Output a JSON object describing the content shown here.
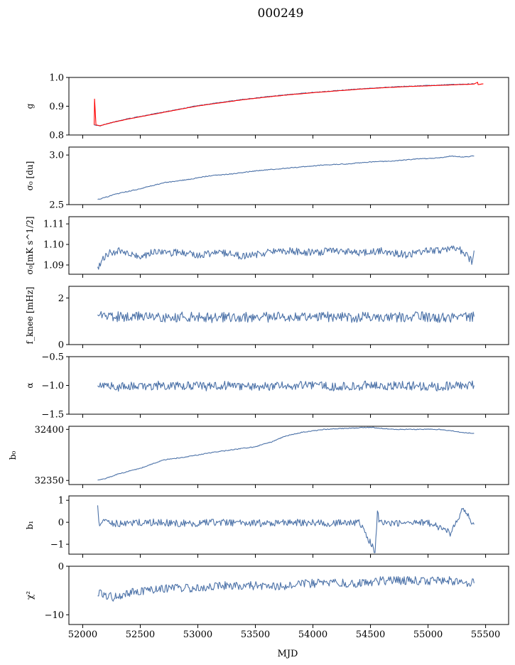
{
  "title": "000249",
  "xlabel": "MJD",
  "colors": {
    "series": "#4c72a8",
    "model": "#ff0000"
  },
  "chart_data": [
    {
      "type": "line",
      "ylabel": "g",
      "ylim": [
        0.8,
        1.0
      ],
      "yticks": [
        0.8,
        0.9,
        1.0
      ],
      "ytick_labels": [
        "0.8",
        "0.9",
        "1.0"
      ],
      "xlim": [
        51880,
        55700
      ],
      "series": [
        {
          "x": [
            52100,
            52150,
            52250,
            52400,
            52600,
            52800,
            53000,
            53200,
            53400,
            53600,
            53800,
            54000,
            54200,
            54400,
            54600,
            54800,
            55000,
            55200,
            55400
          ],
          "values": [
            0.835,
            0.832,
            0.843,
            0.857,
            0.872,
            0.887,
            0.902,
            0.913,
            0.924,
            0.933,
            0.941,
            0.948,
            0.954,
            0.96,
            0.965,
            0.969,
            0.972,
            0.975,
            0.978
          ],
          "color": "blue"
        },
        {
          "x": [
            52100,
            52103,
            52108,
            52115,
            52150,
            52250,
            52400,
            52600,
            52800,
            53000,
            53200,
            53400,
            53600,
            53800,
            54000,
            54200,
            54400,
            54600,
            54800,
            55000,
            55200,
            55400,
            55430,
            55435,
            55480
          ],
          "values": [
            0.835,
            0.925,
            0.89,
            0.835,
            0.832,
            0.843,
            0.856,
            0.871,
            0.886,
            0.901,
            0.912,
            0.923,
            0.932,
            0.94,
            0.947,
            0.953,
            0.959,
            0.964,
            0.968,
            0.971,
            0.974,
            0.977,
            0.983,
            0.975,
            0.978
          ],
          "color": "red"
        }
      ]
    },
    {
      "type": "line",
      "ylabel": "σ₀ [du]",
      "ylim": [
        2.5,
        3.08
      ],
      "yticks": [
        2.5,
        3.0
      ],
      "ytick_labels": [
        "2.5",
        "3.0"
      ],
      "xlim": [
        51880,
        55700
      ],
      "series": [
        {
          "x": [
            52130,
            52300,
            52500,
            52700,
            52900,
            53100,
            53300,
            53500,
            53700,
            53900,
            54100,
            54300,
            54500,
            54700,
            54900,
            55100,
            55200,
            55300,
            55400
          ],
          "values": [
            2.55,
            2.61,
            2.66,
            2.72,
            2.75,
            2.79,
            2.81,
            2.84,
            2.86,
            2.88,
            2.9,
            2.91,
            2.93,
            2.94,
            2.96,
            2.97,
            2.99,
            2.98,
            2.99
          ],
          "color": "blue"
        }
      ]
    },
    {
      "type": "line",
      "ylabel": "σ₀[mK s^1/2]",
      "ylim": [
        1.0855,
        1.1135
      ],
      "yticks": [
        1.09,
        1.1,
        1.11
      ],
      "ytick_labels": [
        "1.09",
        "1.10",
        "1.11"
      ],
      "xlim": [
        51880,
        55700
      ],
      "series": [
        {
          "x": [
            52130,
            52200,
            52300,
            52400,
            52500,
            52600,
            52800,
            53000,
            53200,
            53400,
            53600,
            53800,
            54000,
            54200,
            54400,
            54600,
            54800,
            55000,
            55100,
            55200,
            55300,
            55380,
            55400
          ],
          "values": [
            1.089,
            1.095,
            1.097,
            1.095,
            1.094,
            1.096,
            1.096,
            1.095,
            1.096,
            1.094,
            1.096,
            1.097,
            1.096,
            1.097,
            1.096,
            1.097,
            1.095,
            1.097,
            1.097,
            1.098,
            1.097,
            1.092,
            1.097
          ],
          "color": "blue"
        }
      ]
    },
    {
      "type": "line",
      "ylabel": "f_knee [mHz]",
      "ylim": [
        0,
        2.5
      ],
      "yticks": [
        0,
        2
      ],
      "ytick_labels": [
        "0",
        "2"
      ],
      "xlim": [
        51880,
        55700
      ],
      "series": [
        {
          "x": [
            52130,
            52300,
            52500,
            52700,
            52900,
            53100,
            53300,
            53500,
            53700,
            53900,
            54100,
            54300,
            54500,
            54700,
            54900,
            55100,
            55300,
            55400
          ],
          "values": [
            1.25,
            1.2,
            1.2,
            1.15,
            1.2,
            1.15,
            1.2,
            1.15,
            1.2,
            1.15,
            1.2,
            1.15,
            1.2,
            1.15,
            1.2,
            1.15,
            1.2,
            1.2
          ],
          "color": "blue"
        }
      ]
    },
    {
      "type": "line",
      "ylabel": "α",
      "ylim": [
        -1.5,
        -0.5
      ],
      "yticks": [
        -1.5,
        -1.0,
        -0.5
      ],
      "ytick_labels": [
        "−1.5",
        "−1.0",
        "−0.5"
      ],
      "xlim": [
        51880,
        55700
      ],
      "series": [
        {
          "x": [
            52130,
            52400,
            52700,
            53000,
            53300,
            53600,
            53900,
            54200,
            54500,
            54800,
            55100,
            55400
          ],
          "values": [
            -1.03,
            -1.02,
            -1.0,
            -1.02,
            -1.0,
            -1.02,
            -1.0,
            -1.02,
            -1.0,
            -1.0,
            -1.02,
            -1.0
          ],
          "color": "blue"
        }
      ]
    },
    {
      "type": "line",
      "ylabel": "b₀",
      "ylim": [
        32346,
        32403
      ],
      "yticks": [
        32350,
        32400
      ],
      "ytick_labels": [
        "32350",
        "32400"
      ],
      "xlim": [
        51880,
        55700
      ],
      "series": [
        {
          "x": [
            52130,
            52200,
            52300,
            52500,
            52700,
            52900,
            53100,
            53300,
            53500,
            53650,
            53750,
            53900,
            54100,
            54300,
            54500,
            54700,
            54900,
            55100,
            55300,
            55400
          ],
          "values": [
            32350,
            32352,
            32356,
            32362,
            32370,
            32373,
            32377,
            32380,
            32383,
            32388,
            32393,
            32397,
            32400,
            32401,
            32402,
            32400,
            32400,
            32400,
            32397,
            32396
          ],
          "color": "blue"
        }
      ]
    },
    {
      "type": "line",
      "ylabel": "b₁",
      "ylim": [
        -1.45,
        1.2
      ],
      "yticks": [
        -1,
        0,
        1
      ],
      "ytick_labels": [
        "−1",
        "0",
        "1"
      ],
      "xlim": [
        51880,
        55700
      ],
      "series": [
        {
          "x": [
            52130,
            52140,
            52160,
            52300,
            52600,
            52900,
            53200,
            53500,
            53800,
            54100,
            54400,
            54540,
            54560,
            54580,
            54700,
            55000,
            55200,
            55300,
            55400
          ],
          "values": [
            0.9,
            -0.1,
            0.0,
            -0.05,
            0.0,
            -0.05,
            0.0,
            -0.05,
            0.0,
            -0.05,
            0.0,
            -1.3,
            0.5,
            0.0,
            -0.05,
            0.0,
            -0.5,
            0.6,
            -0.1
          ],
          "color": "blue"
        }
      ]
    },
    {
      "type": "line",
      "ylabel": "χ²",
      "ylim": [
        -12,
        0
      ],
      "yticks": [
        -10,
        0
      ],
      "ytick_labels": [
        "−10",
        "0"
      ],
      "xlim": [
        51880,
        55700
      ],
      "xticks": [
        52000,
        52500,
        53000,
        53500,
        54000,
        54500,
        55000,
        55500
      ],
      "xtick_labels": [
        "52000",
        "52500",
        "53000",
        "53500",
        "54000",
        "54500",
        "55000",
        "55500"
      ],
      "series": [
        {
          "x": [
            52130,
            52200,
            52300,
            52400,
            52600,
            52800,
            53000,
            53200,
            53400,
            53600,
            53800,
            54000,
            54200,
            54400,
            54600,
            54800,
            55000,
            55200,
            55400
          ],
          "values": [
            -5.5,
            -6.0,
            -6.5,
            -5.5,
            -5.0,
            -4.5,
            -4.5,
            -4.0,
            -4.0,
            -4.0,
            -4.0,
            -3.5,
            -3.5,
            -3.5,
            -3.0,
            -3.0,
            -3.0,
            -3.0,
            -3.5
          ],
          "color": "blue"
        }
      ]
    }
  ]
}
